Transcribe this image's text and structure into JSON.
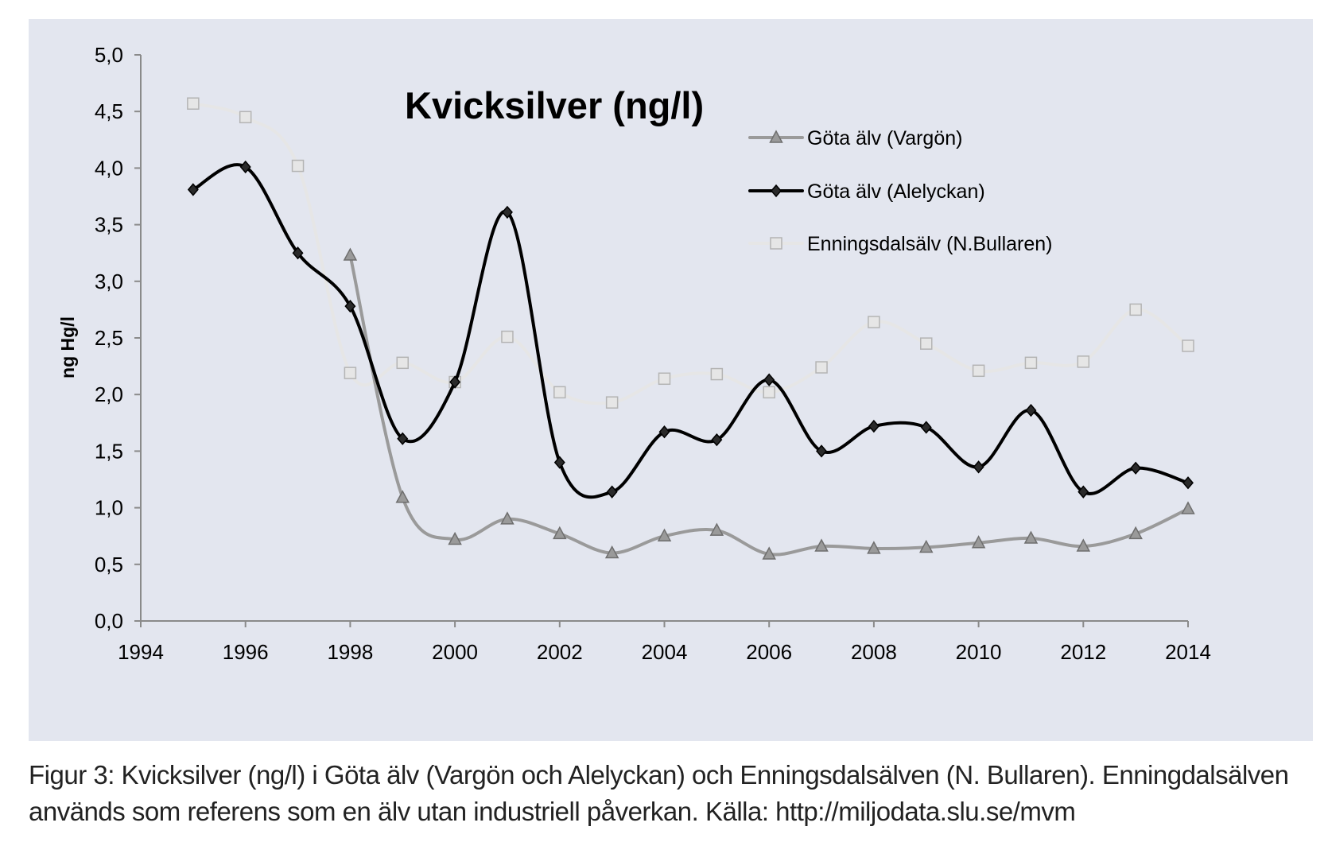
{
  "chart_data": {
    "type": "line",
    "title": "Kvicksilver (ng/l)",
    "xlabel": "",
    "ylabel": "ng Hg/l",
    "xlim": [
      1994,
      2014
    ],
    "ylim": [
      0,
      5
    ],
    "x_ticks": [
      "1994",
      "1996",
      "1998",
      "2000",
      "2002",
      "2004",
      "2006",
      "2008",
      "2010",
      "2012",
      "2014"
    ],
    "y_ticks": [
      "0,0",
      "0,5",
      "1,0",
      "1,5",
      "2,0",
      "2,5",
      "3,0",
      "3,5",
      "4,0",
      "4,5",
      "5,0"
    ],
    "grid": false,
    "legend_position": "top-right",
    "background_color": "#e3e6ef",
    "series": [
      {
        "name": "Göta älv (Vargön)",
        "marker": "triangle",
        "color": "#9a9a9a",
        "x": [
          1998,
          1999,
          2000,
          2001,
          2002,
          2003,
          2004,
          2005,
          2006,
          2007,
          2008,
          2009,
          2010,
          2011,
          2012,
          2013,
          2014
        ],
        "values": [
          3.23,
          1.09,
          0.72,
          0.9,
          0.77,
          0.6,
          0.75,
          0.8,
          0.59,
          0.66,
          0.64,
          0.65,
          0.69,
          0.73,
          0.66,
          0.77,
          0.99
        ]
      },
      {
        "name": "Göta älv (Alelyckan)",
        "marker": "diamond",
        "color": "#000000",
        "x": [
          1995,
          1996,
          1997,
          1998,
          1999,
          2000,
          2001,
          2002,
          2003,
          2004,
          2005,
          2006,
          2007,
          2008,
          2009,
          2010,
          2011,
          2012,
          2013,
          2014
        ],
        "values": [
          3.81,
          4.01,
          3.25,
          2.78,
          1.61,
          2.11,
          3.61,
          1.4,
          1.14,
          1.67,
          1.6,
          2.13,
          1.5,
          1.72,
          1.71,
          1.36,
          1.86,
          1.14,
          1.35,
          1.22
        ]
      },
      {
        "name": "Enningsdalsälv (N.Bullaren)",
        "marker": "square",
        "color": "#e6e6e6",
        "x": [
          1995,
          1996,
          1997,
          1998,
          1999,
          2000,
          2001,
          2002,
          2003,
          2004,
          2005,
          2006,
          2007,
          2008,
          2009,
          2010,
          2011,
          2012,
          2013,
          2014
        ],
        "values": [
          4.57,
          4.45,
          4.02,
          2.19,
          2.28,
          2.11,
          2.51,
          2.02,
          1.93,
          2.14,
          2.18,
          2.02,
          2.24,
          2.64,
          2.45,
          2.21,
          2.28,
          2.29,
          2.75,
          2.43
        ]
      }
    ]
  },
  "caption": {
    "line1": "Figur 3: Kvicksilver (ng/l) i Göta älv (Vargön och Alelyckan) och Enningsdalsälven (N. Bullaren). Enningdalsälven",
    "line2": "används som referens som en älv utan industriell påverkan. Källa: http://miljodata.slu.se/mvm"
  }
}
